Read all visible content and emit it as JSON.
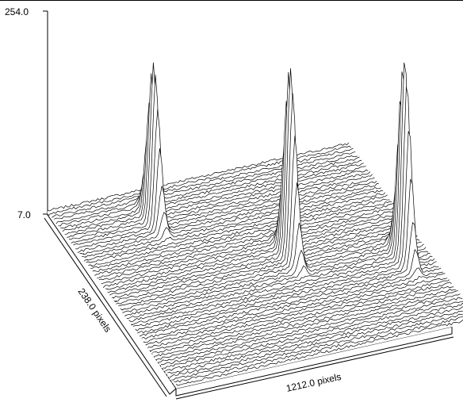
{
  "chart_data": {
    "type": "surface",
    "z_axis": {
      "ticks": [
        "254.0",
        "7.0"
      ],
      "max": 254.0,
      "min": 7.0
    },
    "x_axis": {
      "label": "1212.0 pixels",
      "extent": 1212.0,
      "units": "pixels"
    },
    "y_axis": {
      "label": "238.0 pixels",
      "extent": 238.0,
      "units": "pixels"
    },
    "baseline_level": 7.0,
    "peaks": [
      {
        "x": 340,
        "y": 40,
        "value": 200
      },
      {
        "x": 720,
        "y": 118,
        "value": 240
      },
      {
        "x": 1110,
        "y": 150,
        "value": 254
      }
    ],
    "grid": false,
    "colors": {
      "line": "#000000",
      "fill": "#ffffff",
      "background": "#ffffff"
    }
  }
}
